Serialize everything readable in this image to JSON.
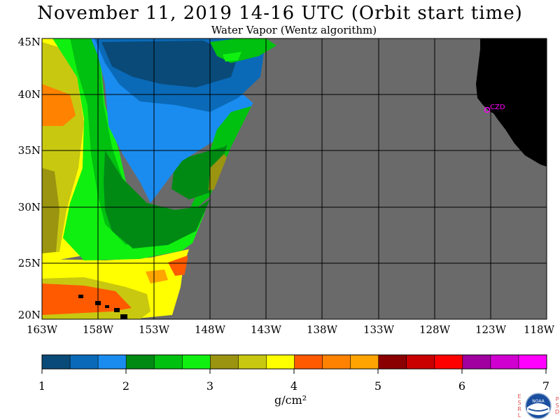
{
  "title": "November 11, 2019  14-16 UTC  (Orbit start time)",
  "subtitle": "Water Vapor (Wentz algorithm)",
  "map": {
    "lat_labels": [
      "45N",
      "40N",
      "35N",
      "30N",
      "25N",
      "20N"
    ],
    "lon_labels": [
      "163W",
      "158W",
      "153W",
      "148W",
      "143W",
      "138W",
      "133W",
      "128W",
      "123W",
      "118W"
    ],
    "station_label": "CZD",
    "colors": {
      "no_data": "#6a6a6a",
      "land": "#000000",
      "grid": "#000000",
      "station": "#ff00ff"
    }
  },
  "colorbar": {
    "tick_labels": [
      "1",
      "2",
      "3",
      "4",
      "5",
      "6",
      "7"
    ],
    "units": "g/cm²",
    "colors": [
      "#0a4a78",
      "#0a6ab8",
      "#1a8cf0",
      "#008a14",
      "#00c010",
      "#10f010",
      "#9a9410",
      "#c8c810",
      "#ffff00",
      "#ff5a00",
      "#ff8200",
      "#ffa400",
      "#8a0000",
      "#c80000",
      "#ff0000",
      "#a000a0",
      "#d000d0",
      "#ff00ff"
    ]
  },
  "logo": {
    "left_letters": [
      "E",
      "S",
      "R",
      "L"
    ],
    "right_letters": [
      "P",
      "S",
      "D"
    ],
    "center_text": "NOAA"
  }
}
